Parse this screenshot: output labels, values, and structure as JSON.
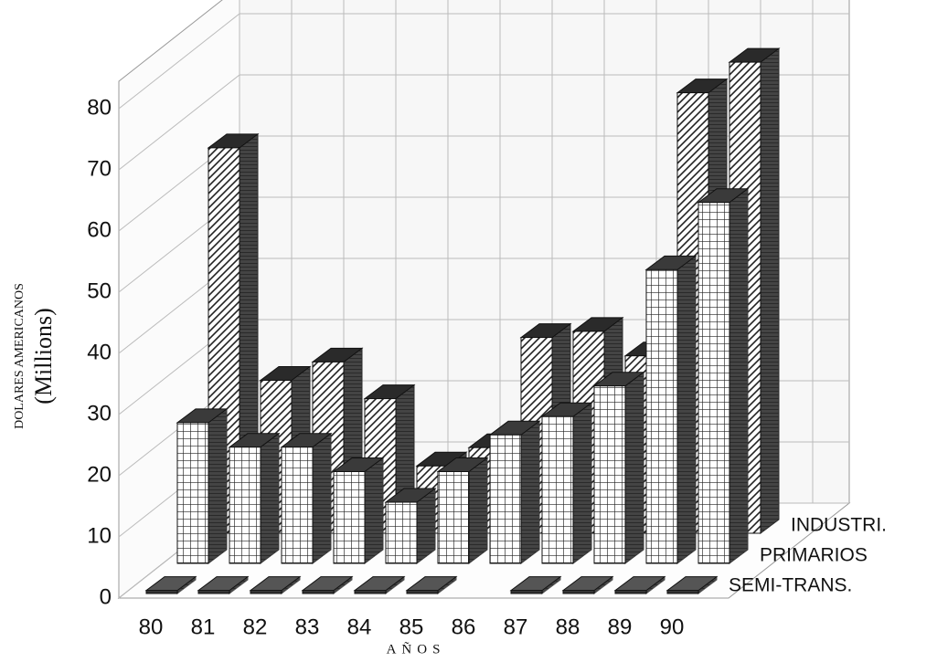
{
  "chart_data": {
    "type": "bar3d",
    "y_label": "DOLARES AMERICANOS",
    "y_label_units": "(Millions)",
    "x_label": "AÑOS",
    "categories": [
      "80",
      "81",
      "82",
      "83",
      "84",
      "85",
      "86",
      "87",
      "88",
      "89",
      "90"
    ],
    "series": [
      {
        "name": "SEMI-TRANS.",
        "color": "#555555",
        "pattern": "solid",
        "values": [
          0.5,
          0.5,
          0.5,
          0.5,
          0.5,
          0.5,
          null,
          0.5,
          0.5,
          0.5,
          0.5
        ]
      },
      {
        "name": "PRIMARIOS",
        "color": "#3a3a3a",
        "pattern": "grid",
        "values": [
          23,
          19,
          19,
          15,
          10,
          15,
          21,
          24,
          29,
          48,
          59
        ]
      },
      {
        "name": "INDUSTRI.",
        "color": "#2a2a2a",
        "pattern": "hatch",
        "values": [
          63,
          25,
          28,
          22,
          11,
          14,
          32,
          33,
          29,
          72,
          77
        ]
      }
    ],
    "ylim": [
      0,
      80
    ],
    "yticks": [
      0,
      10,
      20,
      30,
      40,
      50,
      60,
      70,
      80
    ],
    "grid": true
  }
}
